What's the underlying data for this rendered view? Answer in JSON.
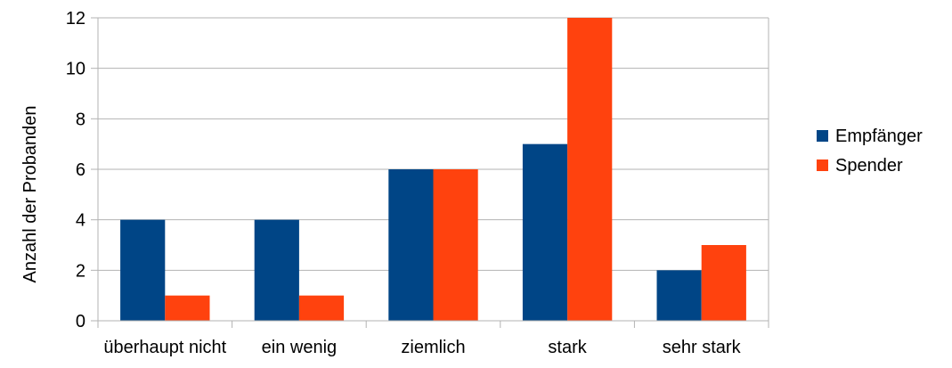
{
  "chart_data": {
    "type": "bar",
    "title": "",
    "xlabel": "",
    "ylabel": "Anzahl der Probanden",
    "categories": [
      "überhaupt nicht",
      "ein wenig",
      "ziemlich",
      "stark",
      "sehr stark"
    ],
    "series": [
      {
        "name": "Empfänger",
        "values": [
          4,
          4,
          6,
          7,
          2
        ],
        "color": "#004586"
      },
      {
        "name": "Spender",
        "values": [
          1,
          1,
          6,
          12,
          3
        ],
        "color": "#ff420e"
      }
    ],
    "ylim": [
      0,
      12
    ],
    "yticks": [
      0,
      2,
      4,
      6,
      8,
      10,
      12
    ],
    "grid": true,
    "legend_position": "right"
  },
  "colors": {
    "grid": "#b3b3b3",
    "axis": "#b3b3b3"
  }
}
